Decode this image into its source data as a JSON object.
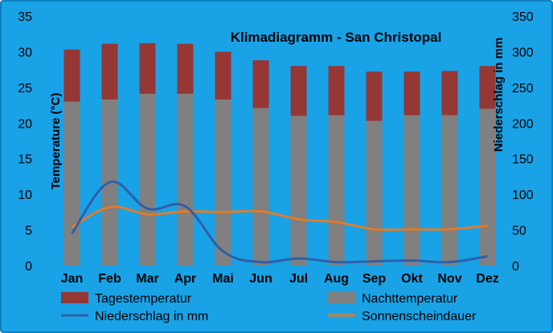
{
  "chart_data": {
    "type": "bar",
    "title": "Klimadiagramm - San Christopal",
    "categories": [
      "Jan",
      "Feb",
      "Mar",
      "Apr",
      "Mai",
      "Jun",
      "Jul",
      "Aug",
      "Sep",
      "Okt",
      "Nov",
      "Dez"
    ],
    "ylabel": "Temperature (°C)",
    "ylabel_right": "Niederschlag in mm",
    "ylim": [
      0,
      35
    ],
    "ylim_right": [
      0,
      350
    ],
    "yticks": [
      "0",
      "5",
      "10",
      "15",
      "20",
      "25",
      "30",
      "35"
    ],
    "yticks_right": [
      "0",
      "50",
      "100",
      "150",
      "200",
      "250",
      "300",
      "350"
    ],
    "grid": false,
    "legend_position": "bottom",
    "colors": {
      "background": "#19a2e6",
      "plot_area": "#19a2e6",
      "tagestemperatur": "#953735",
      "nachttemperatur": "#808080",
      "niederschlag": "#2f5fa7",
      "sonnenscheindauer": "#e07b2a"
    },
    "series": [
      {
        "name": "Tagestemperatur",
        "kind": "bar",
        "axis": "left",
        "values": [
          30.3,
          31.1,
          31.2,
          31.1,
          30.0,
          28.8,
          28.0,
          28.0,
          27.2,
          27.2,
          27.3,
          28.0
        ]
      },
      {
        "name": "Nachttemperatur",
        "kind": "bar",
        "axis": "left",
        "values": [
          23.0,
          23.3,
          24.1,
          24.1,
          23.3,
          22.1,
          21.0,
          21.1,
          20.3,
          21.1,
          21.1,
          22.0
        ]
      },
      {
        "name": "Niederschlag in mm",
        "kind": "line",
        "axis": "right",
        "values": [
          45,
          117,
          80,
          83,
          20,
          5,
          10,
          5,
          6,
          7,
          5,
          13
        ]
      },
      {
        "name": "Sonnenscheindauer",
        "kind": "line",
        "axis": "left",
        "values": [
          5.4,
          8.2,
          7.2,
          7.6,
          7.5,
          7.6,
          6.5,
          6.1,
          5.1,
          5.1,
          5.1,
          5.6
        ]
      }
    ],
    "legend": [
      {
        "label": "Tagestemperatur",
        "swatch": "bar",
        "color": "#953735"
      },
      {
        "label": "Nachttemperatur",
        "swatch": "bar",
        "color": "#808080"
      },
      {
        "label": "Niederschlag in mm",
        "swatch": "line",
        "color": "#2f5fa7"
      },
      {
        "label": "Sonnenscheindauer",
        "swatch": "line",
        "color": "#e07b2a"
      }
    ]
  }
}
